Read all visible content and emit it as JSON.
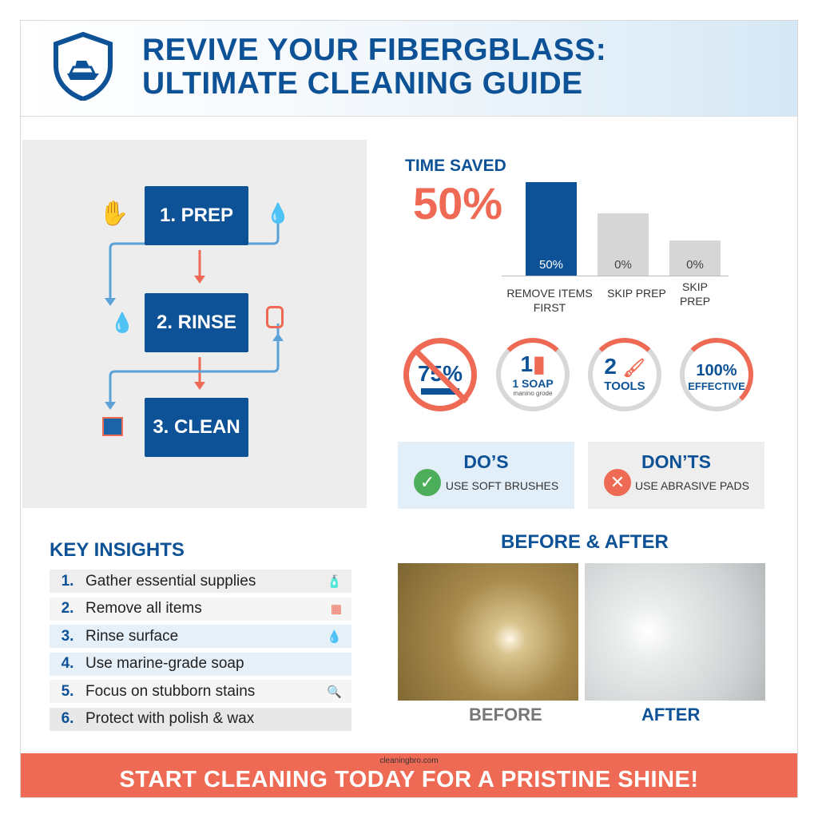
{
  "header": {
    "title_line1": "REVIVE YOUR FIBERGBLASS:",
    "title_line2": "ULTIMATE CLEANING GUIDE",
    "logo_icon": "shield-boat-icon"
  },
  "flow": {
    "steps": [
      {
        "label": "1. PREP"
      },
      {
        "label": "2. RINSE"
      },
      {
        "label": "3. CLEAN"
      }
    ]
  },
  "chart_data": {
    "type": "bar",
    "title": "TIME SAVED",
    "headline": "50%",
    "categories": [
      "REMOVE ITEMS FIRST",
      "SKIP PREP",
      "SKIP PREP"
    ],
    "data_labels": [
      "50%",
      "0%",
      "0%"
    ],
    "values": [
      50,
      0,
      0
    ],
    "colors": [
      "#0d5296",
      "#d6d6d6",
      "#d6d6d6"
    ]
  },
  "badges": [
    {
      "value": "75%",
      "icon": "prohibited-tub-icon"
    },
    {
      "value": "1",
      "label": "1 SOAP",
      "sub": "manino grode",
      "icon": "soap-bottle-icon",
      "progress": 0.3
    },
    {
      "value": "2",
      "label": "TOOLS",
      "icon": "brush-icon",
      "progress": 0.2
    },
    {
      "value": "100%",
      "label": "EFFECTIVE",
      "progress": 0.25
    }
  ],
  "dos": {
    "title": "DO’S",
    "text": "USE SOFT BRUSHES"
  },
  "donts": {
    "title": "DON’TS",
    "text": "USE ABRASIVE PADS"
  },
  "insights": {
    "title": "KEY INSIGHTS",
    "items": [
      {
        "n": "1.",
        "text": "Gather essential supplies"
      },
      {
        "n": "2.",
        "text": "Remove all items"
      },
      {
        "n": "3.",
        "text": "Rinse surface"
      },
      {
        "n": "4.",
        "text": "Use marine-grade soap"
      },
      {
        "n": "5.",
        "text": "Focus on stubborn stains"
      },
      {
        "n": "6.",
        "text": "Protect with polish & wax"
      }
    ]
  },
  "before_after": {
    "title": "BEFORE & AFTER",
    "before": "BEFORE",
    "after": "AFTER"
  },
  "footer": {
    "url": "cleaningbro.com",
    "cta": "START CLEANING TODAY FOR A PRISTINE SHINE!"
  },
  "colors": {
    "blue": "#0d5296",
    "coral": "#ef6a55",
    "gray": "#ededed"
  }
}
